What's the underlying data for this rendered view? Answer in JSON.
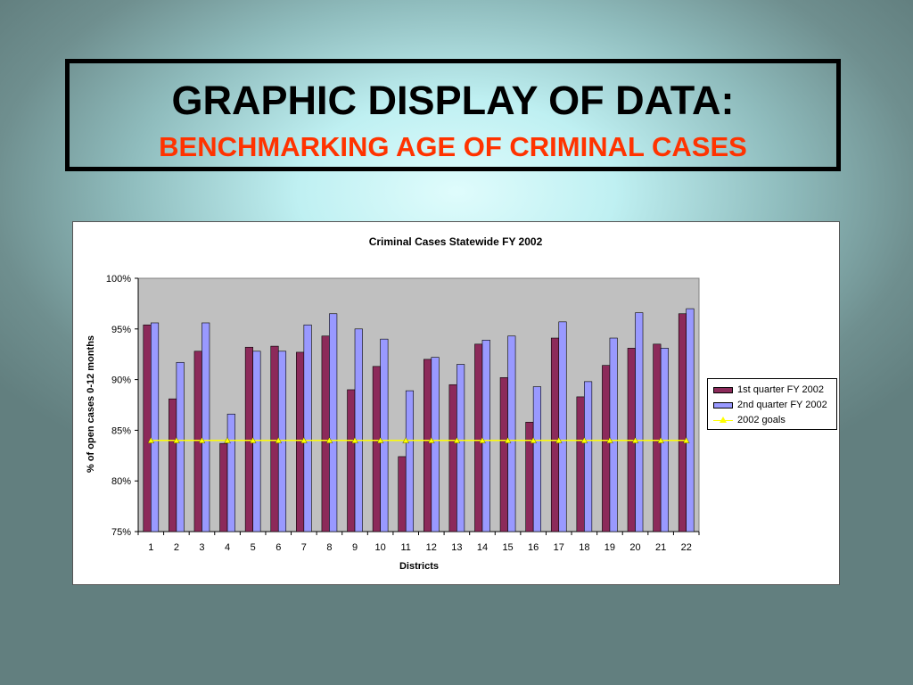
{
  "slide": {
    "title": "GRAPHIC DISPLAY OF DATA:",
    "subtitle": "BENCHMARKING AGE OF CRIMINAL CASES"
  },
  "chart_data": {
    "type": "bar",
    "title": "Criminal Cases Statewide FY 2002",
    "xlabel": "Districts",
    "ylabel": "% of open cases 0-12 months",
    "categories": [
      "1",
      "2",
      "3",
      "4",
      "5",
      "6",
      "7",
      "8",
      "9",
      "10",
      "11",
      "12",
      "13",
      "14",
      "15",
      "16",
      "17",
      "18",
      "19",
      "20",
      "21",
      "22"
    ],
    "ylim": [
      75,
      100
    ],
    "yticks": [
      "75%",
      "80%",
      "85%",
      "90%",
      "95%",
      "100%"
    ],
    "ytick_values": [
      75,
      80,
      85,
      90,
      95,
      100
    ],
    "grid": false,
    "legend_position": "right",
    "series": [
      {
        "name": "1st quarter FY 2002",
        "type": "bar",
        "color": "#8c2a5a",
        "values": [
          95.4,
          88.1,
          92.8,
          83.7,
          93.2,
          93.3,
          92.7,
          94.3,
          89.0,
          91.3,
          82.4,
          92.0,
          89.5,
          93.5,
          90.2,
          85.8,
          94.1,
          88.3,
          91.4,
          93.1,
          93.5,
          96.5
        ]
      },
      {
        "name": "2nd quarter FY 2002",
        "type": "bar",
        "color": "#9999ff",
        "values": [
          95.6,
          91.7,
          95.6,
          86.6,
          92.8,
          92.8,
          95.4,
          96.5,
          95.0,
          94.0,
          88.9,
          92.2,
          91.5,
          93.9,
          94.3,
          89.3,
          95.7,
          89.8,
          94.1,
          96.6,
          93.1,
          97.0
        ]
      },
      {
        "name": "2002 goals",
        "type": "line",
        "color": "#ffff00",
        "values": [
          84,
          84,
          84,
          84,
          84,
          84,
          84,
          84,
          84,
          84,
          84,
          84,
          84,
          84,
          84,
          84,
          84,
          84,
          84,
          84,
          84,
          84
        ]
      }
    ],
    "plot_background": "#c0c0c0"
  }
}
